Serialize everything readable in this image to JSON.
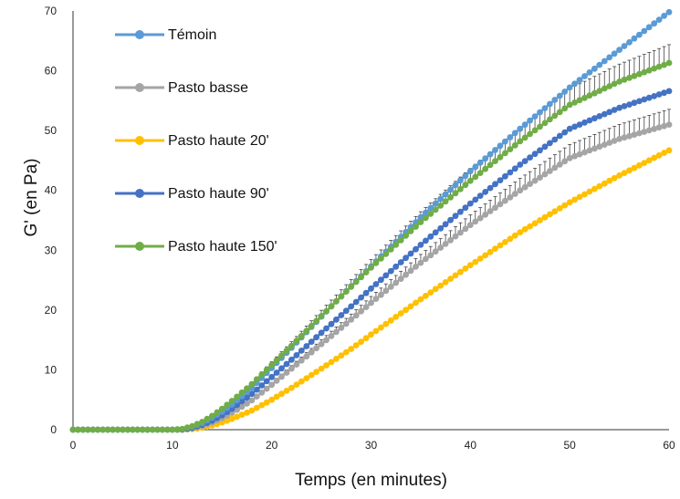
{
  "chart_data": {
    "type": "line",
    "title": "",
    "xlabel": "Temps (en minutes)",
    "ylabel": "G' (en Pa)",
    "xlim": [
      0,
      60
    ],
    "ylim": [
      0,
      70
    ],
    "x_ticks": [
      "0",
      "10",
      "20",
      "30",
      "40",
      "50",
      "60"
    ],
    "y_ticks": [
      "0",
      "10",
      "20",
      "30",
      "40",
      "50",
      "60",
      "70"
    ],
    "grid": false,
    "legend_position": "top-left",
    "x": [
      0,
      5,
      10,
      11,
      12,
      13,
      14,
      15,
      16,
      18,
      20,
      22,
      25,
      28,
      30,
      35,
      40,
      45,
      50,
      55,
      60
    ],
    "series": [
      {
        "name": "Témoin",
        "color": "#5b9bd5",
        "values": [
          0,
          0,
          0,
          0.1,
          0.5,
          1.1,
          2,
          3,
          4.2,
          7,
          10.3,
          13.7,
          18.9,
          24,
          27.3,
          35.5,
          43.2,
          50.3,
          57.2,
          63.5,
          69.8
        ],
        "error_bars": false
      },
      {
        "name": "Pasto basse",
        "color": "#a5a5a5",
        "values": [
          0,
          0,
          0,
          0,
          0.2,
          0.6,
          1.2,
          1.9,
          2.8,
          4.9,
          7.5,
          10.2,
          14.3,
          18.4,
          21.2,
          27.9,
          34.2,
          40,
          45.4,
          48.6,
          51
        ],
        "error_bars": true
      },
      {
        "name": "Pasto haute 20'",
        "color": "#ffc000",
        "values": [
          0,
          0,
          0,
          0,
          0.1,
          0.3,
          0.7,
          1.2,
          1.8,
          3.2,
          5,
          7,
          10.2,
          13.5,
          15.9,
          21.8,
          27.5,
          33,
          38,
          42.5,
          46.7
        ],
        "error_bars": false
      },
      {
        "name": "Pasto haute 90'",
        "color": "#4472c4",
        "values": [
          0,
          0,
          0,
          0,
          0.3,
          0.8,
          1.5,
          2.4,
          3.5,
          6,
          8.8,
          11.7,
          16.2,
          20.6,
          23.6,
          30.9,
          37.8,
          44.3,
          50.3,
          53.8,
          56.6
        ],
        "error_bars": false
      },
      {
        "name": "Pasto haute 150'",
        "color": "#70ad47",
        "values": [
          0,
          0,
          0,
          0.1,
          0.6,
          1.3,
          2.3,
          3.5,
          4.8,
          7.6,
          10.8,
          14,
          19,
          23.9,
          27.1,
          34.7,
          41.6,
          48.2,
          54.3,
          58.2,
          61.3
        ],
        "error_bars": true
      }
    ]
  }
}
